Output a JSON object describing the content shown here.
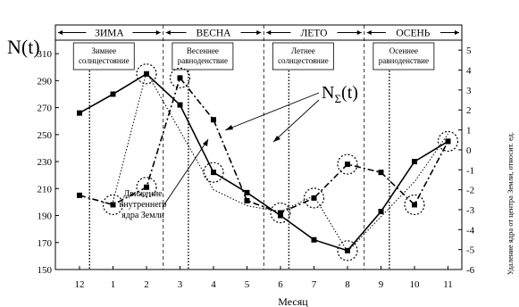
{
  "chart_data": {
    "type": "line",
    "title": "",
    "xlabel": "Месяц",
    "ylabel": "N(t)",
    "ylabel_right": "Удаление ядра от центра Земли, относит. ед.",
    "categories": [
      "12",
      "1",
      "2",
      "3",
      "4",
      "5",
      "6",
      "7",
      "8",
      "9",
      "10",
      "11"
    ],
    "ylim": [
      150,
      320
    ],
    "yticks": [
      150,
      170,
      190,
      210,
      230,
      250,
      270,
      290,
      310
    ],
    "y2lim": [
      -6,
      5.5
    ],
    "y2ticks": [
      -6,
      -5,
      -4,
      -3,
      -2,
      -1,
      0,
      1,
      2,
      3,
      4,
      5
    ],
    "grid": false,
    "seasons": [
      "ЗИМА",
      "ВЕСНА",
      "ЛЕТО",
      "ОСЕНЬ"
    ],
    "events": [
      {
        "label": "Зимнее солнцестояние",
        "x": 0.3
      },
      {
        "label": "Весеннее равноденствие",
        "x": 3.25
      },
      {
        "label": "Летнее солнцестояние",
        "x": 6.25
      },
      {
        "label": "Осеннее равноденствие",
        "x": 9.25
      }
    ],
    "annotations": [
      {
        "text": "N",
        "sub": "Σ",
        "tail": "(t)"
      },
      {
        "text": "Движение внутреннего ядра Земли"
      }
    ],
    "series": [
      {
        "axis": "left",
        "style": "solid",
        "values": [
          266,
          280,
          295,
          272,
          222,
          207,
          190,
          172,
          164,
          193,
          230,
          245
        ]
      },
      {
        "axis": "left",
        "style": "dashdot",
        "values": [
          205,
          198,
          211,
          292,
          261,
          201,
          192,
          203,
          228,
          222,
          198,
          245
        ]
      },
      {
        "axis": "right",
        "style": "dotted",
        "values": [
          null,
          -2.6,
          3.9,
          null,
          -2.0,
          -2.8,
          -3.1,
          -2.3,
          -5.1,
          null,
          -1.6,
          0.8
        ]
      }
    ],
    "circled": [
      {
        "series": 0,
        "index": 2
      },
      {
        "series": 0,
        "index": 4
      },
      {
        "series": 0,
        "index": 8
      },
      {
        "series": 0,
        "index": 11
      },
      {
        "series": 1,
        "index": 1
      },
      {
        "series": 1,
        "index": 2
      },
      {
        "series": 1,
        "index": 3
      },
      {
        "series": 1,
        "index": 6
      },
      {
        "series": 1,
        "index": 7
      },
      {
        "series": 1,
        "index": 8
      },
      {
        "series": 1,
        "index": 10
      }
    ]
  }
}
